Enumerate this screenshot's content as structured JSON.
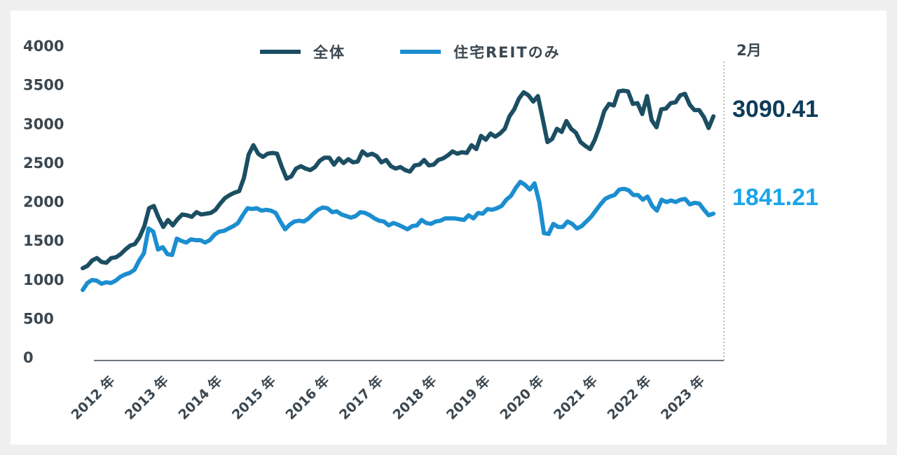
{
  "chart_data": {
    "type": "line",
    "title": "",
    "xlabel": "",
    "ylabel": "",
    "ylim": [
      0,
      4000
    ],
    "y_ticks": [
      "4000",
      "3500",
      "3000",
      "2500",
      "2000",
      "1500",
      "1000",
      "500",
      "0"
    ],
    "x_tick_labels": [
      "2012 年",
      "2013 年",
      "2014 年",
      "2015 年",
      "2016 年",
      "2017 年",
      "2018 年",
      "2019 年",
      "2020 年",
      "2021 年",
      "2022 年",
      "2023 年"
    ],
    "period_marker": "2月",
    "grid": false,
    "legend_position": "top-center",
    "x_start": "2012-01",
    "x_end": "2023-02",
    "series": [
      {
        "name": "全体",
        "color": "#1b4e62",
        "end_label": "3090.41",
        "end_label_color": "#0d3c5a",
        "values": [
          1140,
          1170,
          1240,
          1270,
          1220,
          1210,
          1270,
          1280,
          1320,
          1380,
          1430,
          1450,
          1540,
          1680,
          1910,
          1940,
          1790,
          1670,
          1760,
          1690,
          1770,
          1830,
          1820,
          1800,
          1860,
          1830,
          1840,
          1850,
          1890,
          1970,
          2040,
          2080,
          2110,
          2130,
          2300,
          2600,
          2720,
          2610,
          2570,
          2610,
          2620,
          2610,
          2440,
          2290,
          2320,
          2420,
          2450,
          2420,
          2400,
          2440,
          2520,
          2560,
          2560,
          2470,
          2550,
          2490,
          2540,
          2500,
          2510,
          2640,
          2590,
          2610,
          2580,
          2500,
          2530,
          2450,
          2420,
          2440,
          2400,
          2380,
          2460,
          2470,
          2530,
          2460,
          2470,
          2530,
          2550,
          2590,
          2640,
          2610,
          2630,
          2620,
          2720,
          2670,
          2840,
          2790,
          2870,
          2830,
          2870,
          2930,
          3090,
          3180,
          3320,
          3400,
          3360,
          3280,
          3350,
          3060,
          2760,
          2800,
          2930,
          2890,
          3030,
          2930,
          2880,
          2760,
          2710,
          2670,
          2790,
          2960,
          3160,
          3250,
          3230,
          3410,
          3420,
          3410,
          3250,
          3260,
          3120,
          3350,
          3040,
          2950,
          3180,
          3190,
          3260,
          3270,
          3360,
          3380,
          3240,
          3170,
          3170,
          3080,
          2940,
          3090
        ]
      },
      {
        "name": "住宅REITのみ",
        "color": "#1c8ed0",
        "end_label": "1841.21",
        "end_label_color": "#1aa5e8",
        "values": [
          860,
          950,
          990,
          980,
          940,
          960,
          950,
          980,
          1030,
          1060,
          1080,
          1120,
          1240,
          1330,
          1650,
          1610,
          1380,
          1410,
          1320,
          1310,
          1520,
          1490,
          1470,
          1510,
          1500,
          1500,
          1470,
          1500,
          1570,
          1610,
          1620,
          1650,
          1680,
          1720,
          1820,
          1910,
          1900,
          1910,
          1880,
          1890,
          1880,
          1850,
          1740,
          1640,
          1700,
          1740,
          1750,
          1740,
          1780,
          1840,
          1890,
          1920,
          1910,
          1860,
          1870,
          1830,
          1810,
          1790,
          1810,
          1860,
          1850,
          1820,
          1780,
          1750,
          1740,
          1690,
          1720,
          1700,
          1670,
          1640,
          1680,
          1690,
          1760,
          1720,
          1710,
          1740,
          1750,
          1780,
          1780,
          1780,
          1770,
          1760,
          1820,
          1780,
          1850,
          1840,
          1900,
          1890,
          1910,
          1940,
          2020,
          2070,
          2170,
          2250,
          2210,
          2150,
          2230,
          1990,
          1590,
          1580,
          1710,
          1670,
          1670,
          1740,
          1710,
          1650,
          1680,
          1740,
          1800,
          1880,
          1960,
          2030,
          2060,
          2080,
          2150,
          2160,
          2140,
          2080,
          2080,
          2020,
          2060,
          1940,
          1880,
          2020,
          1990,
          2010,
          1990,
          2020,
          2030,
          1960,
          1980,
          1970,
          1890,
          1820,
          1841.21
        ]
      }
    ]
  }
}
